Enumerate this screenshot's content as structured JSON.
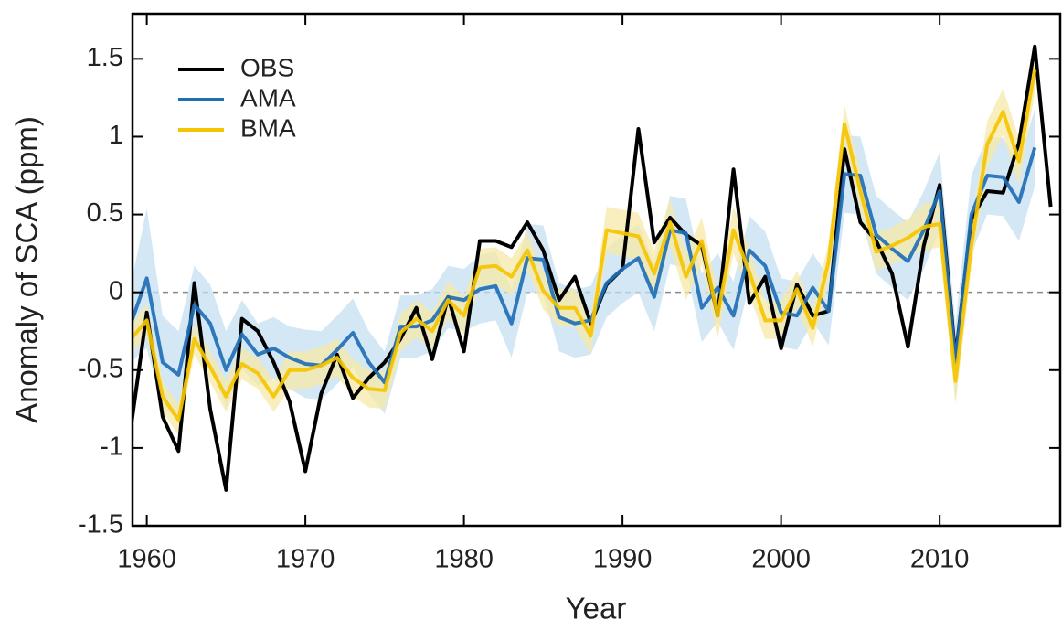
{
  "chart_data": {
    "type": "line",
    "x_label": "Year",
    "y_label": "Anomaly of SCA (ppm)",
    "x": [
      1959,
      1960,
      1961,
      1962,
      1963,
      1964,
      1965,
      1966,
      1967,
      1968,
      1969,
      1970,
      1971,
      1972,
      1973,
      1974,
      1975,
      1976,
      1977,
      1978,
      1979,
      1980,
      1981,
      1982,
      1983,
      1984,
      1985,
      1986,
      1987,
      1988,
      1989,
      1990,
      1991,
      1992,
      1993,
      1994,
      1995,
      1996,
      1997,
      1998,
      1999,
      2000,
      2001,
      2002,
      2003,
      2004,
      2005,
      2006,
      2007,
      2008,
      2009,
      2010,
      2011,
      2012,
      2013,
      2014,
      2015,
      2016,
      2017
    ],
    "series": [
      {
        "name": "OBS",
        "color": "#000000",
        "values": [
          -0.87,
          -0.13,
          -0.8,
          -1.02,
          0.06,
          -0.75,
          -1.27,
          -0.17,
          -0.25,
          -0.45,
          -0.7,
          -1.15,
          -0.65,
          -0.4,
          -0.68,
          -0.55,
          -0.45,
          -0.3,
          -0.1,
          -0.43,
          -0.03,
          -0.38,
          0.33,
          0.33,
          0.29,
          0.45,
          0.27,
          -0.05,
          0.1,
          -0.2,
          0.05,
          0.15,
          1.05,
          0.32,
          0.48,
          0.37,
          0.3,
          -0.15,
          0.79,
          -0.07,
          0.1,
          -0.36,
          0.05,
          -0.15,
          -0.12,
          0.92,
          0.45,
          0.33,
          0.12,
          -0.35,
          0.3,
          0.69,
          -0.42,
          0.47,
          0.65,
          0.64,
          0.96,
          1.58,
          0.55
        ]
      },
      {
        "name": "AMA",
        "color": "#1f6fb5",
        "band_color": "#c6dff0",
        "values": [
          -0.2,
          0.09,
          -0.45,
          -0.53,
          -0.08,
          -0.2,
          -0.5,
          -0.27,
          -0.4,
          -0.36,
          -0.42,
          -0.46,
          -0.47,
          -0.37,
          -0.26,
          -0.45,
          -0.58,
          -0.22,
          -0.22,
          -0.18,
          -0.03,
          -0.05,
          0.02,
          0.04,
          -0.2,
          0.22,
          0.21,
          -0.16,
          -0.2,
          -0.18,
          0.06,
          0.15,
          0.22,
          -0.03,
          0.4,
          0.38,
          -0.1,
          0.03,
          -0.15,
          0.27,
          0.17,
          -0.13,
          -0.15,
          0.03,
          -0.12,
          0.76,
          0.75,
          0.37,
          0.28,
          0.2,
          0.4,
          0.65,
          -0.45,
          0.5,
          0.75,
          0.74,
          0.58,
          0.93,
          null
        ],
        "errors": [
          0.25,
          0.45,
          0.3,
          0.28,
          0.25,
          0.25,
          0.25,
          0.22,
          0.2,
          0.2,
          0.2,
          0.22,
          0.22,
          0.22,
          0.22,
          0.2,
          0.2,
          0.2,
          0.2,
          0.2,
          0.2,
          0.2,
          0.22,
          0.22,
          0.22,
          0.22,
          0.22,
          0.22,
          0.22,
          0.22,
          0.22,
          0.22,
          0.22,
          0.22,
          0.22,
          0.22,
          0.22,
          0.22,
          0.22,
          0.22,
          0.22,
          0.22,
          0.22,
          0.22,
          0.22,
          0.25,
          0.25,
          0.25,
          0.25,
          0.25,
          0.25,
          0.25,
          0.25,
          0.25,
          0.25,
          0.25,
          0.25,
          0.25,
          null
        ]
      },
      {
        "name": "BMA",
        "color": "#f5c400",
        "band_color": "#f7e9a8",
        "values": [
          -0.3,
          -0.18,
          -0.67,
          -0.82,
          -0.3,
          -0.48,
          -0.67,
          -0.46,
          -0.52,
          -0.67,
          -0.5,
          -0.5,
          -0.47,
          -0.42,
          -0.55,
          -0.62,
          -0.63,
          -0.26,
          -0.17,
          -0.25,
          -0.05,
          -0.15,
          0.16,
          0.17,
          0.1,
          0.27,
          0.01,
          -0.1,
          -0.1,
          -0.28,
          0.4,
          0.38,
          0.36,
          0.12,
          0.45,
          0.1,
          0.33,
          -0.15,
          0.4,
          0.13,
          -0.18,
          -0.18,
          0.02,
          -0.23,
          0.2,
          1.08,
          0.65,
          0.26,
          0.3,
          0.35,
          0.42,
          0.44,
          -0.57,
          0.3,
          0.95,
          1.16,
          0.84,
          1.43,
          null
        ],
        "errors": [
          0.1,
          0.1,
          0.1,
          0.1,
          0.1,
          0.1,
          0.1,
          0.1,
          0.1,
          0.1,
          0.12,
          0.12,
          0.12,
          0.12,
          0.12,
          0.12,
          0.12,
          0.12,
          0.12,
          0.12,
          0.12,
          0.12,
          0.12,
          0.12,
          0.12,
          0.12,
          0.12,
          0.12,
          0.12,
          0.12,
          0.15,
          0.15,
          0.15,
          0.15,
          0.15,
          0.15,
          0.15,
          0.15,
          0.15,
          0.15,
          0.12,
          0.12,
          0.12,
          0.12,
          0.12,
          0.12,
          0.12,
          0.12,
          0.12,
          0.12,
          0.15,
          0.15,
          0.15,
          0.15,
          0.15,
          0.15,
          0.15,
          0.15,
          null
        ]
      }
    ],
    "xlim": [
      1959.1,
      2017.6
    ],
    "xticks": [
      1960,
      1970,
      1980,
      1990,
      2000,
      2010
    ],
    "ylim": [
      -1.5,
      1.79
    ],
    "yticks": [
      -1.5,
      -1,
      -0.5,
      0,
      0.5,
      1,
      1.5
    ],
    "hline": 0,
    "legend": "upper-left"
  }
}
